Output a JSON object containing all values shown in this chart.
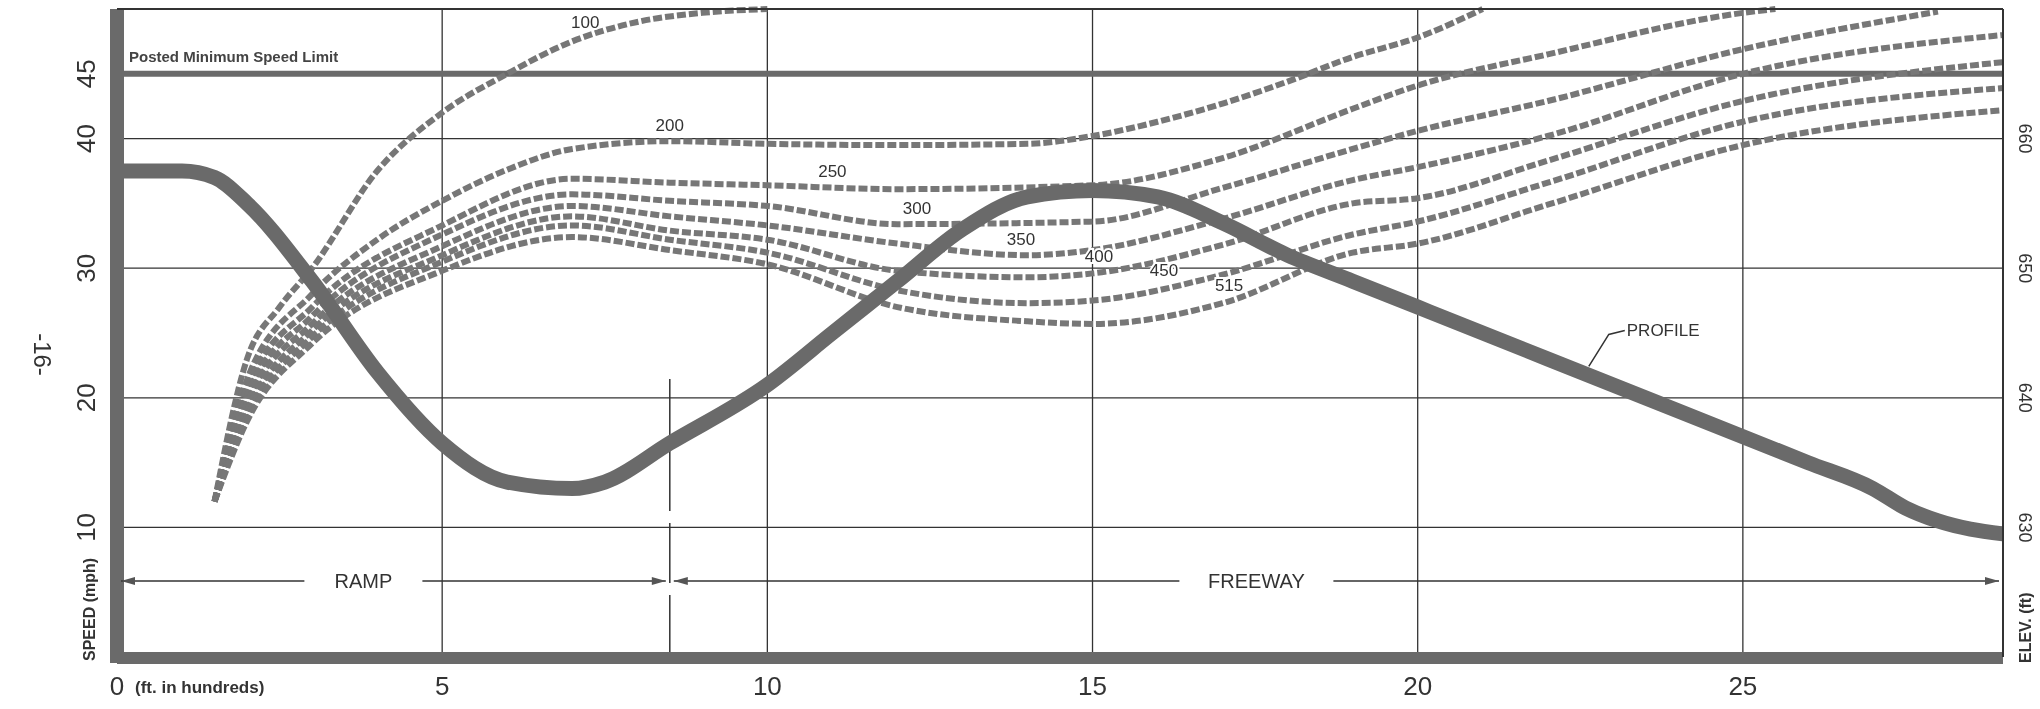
{
  "chart_data": {
    "type": "line",
    "ylabel": "SPEED (mph)",
    "y2label": "ELEV. (ft)",
    "xlabel": "(ft. in hundreds)",
    "xlim": [
      0,
      29
    ],
    "xticks": [
      0,
      5,
      10,
      15,
      20,
      25
    ],
    "ylim": [
      0,
      50
    ],
    "yticks": [
      10,
      20,
      30,
      40,
      45
    ],
    "y2lim": [
      620,
      670
    ],
    "y2ticks": [
      630,
      640,
      650,
      660
    ],
    "grid": true,
    "marker": "none",
    "line_style": "dashed",
    "tick_labels": "xy",
    "ref_lines": [
      {
        "axis": "y",
        "value": 45,
        "label": "Posted Minimum Speed Limit",
        "color": "#6a6a6a"
      },
      {
        "axis": "x",
        "value": 8.5,
        "color": "#333333"
      }
    ],
    "annotations": [
      "-16-",
      "RAMP",
      "FREEWAY"
    ],
    "series": [
      {
        "name": "100",
        "color": "#777777",
        "x": [
          1.5,
          2,
          2.5,
          3,
          4,
          5,
          6,
          7,
          8,
          9,
          10
        ],
        "values": [
          12,
          23,
          27,
          30,
          37.5,
          42,
          45,
          47.5,
          49,
          49.7,
          50
        ]
      },
      {
        "name": "200",
        "color": "#777777",
        "x": [
          1.5,
          2,
          3,
          4,
          5,
          6,
          7,
          8.5,
          10,
          12,
          14,
          15,
          16,
          17,
          18,
          19,
          20,
          21
        ],
        "values": [
          12,
          21.4,
          28,
          32.2,
          35.2,
          37.6,
          39.2,
          39.8,
          39.6,
          39.5,
          39.6,
          40.2,
          41.3,
          42.7,
          44.4,
          46.3,
          47.8,
          50
        ]
      },
      {
        "name": "250",
        "color": "#777777",
        "x": [
          1.5,
          2,
          3,
          5,
          7,
          8.5,
          10,
          12,
          15,
          17,
          19,
          20,
          22,
          25,
          25.5
        ],
        "values": [
          12,
          20.8,
          27,
          33.3,
          36.9,
          36.6,
          36.4,
          36.1,
          36.4,
          38.5,
          42.3,
          44.1,
          46.5,
          49.7,
          50
        ]
      },
      {
        "name": "300",
        "color": "#777777",
        "x": [
          1.5,
          2,
          3,
          5,
          7,
          8.5,
          10,
          12,
          15,
          17,
          19,
          20,
          22,
          25,
          28
        ],
        "values": [
          12,
          20.2,
          26.3,
          32.6,
          35.7,
          35.2,
          34.8,
          33.4,
          33.6,
          36.2,
          39.2,
          40.6,
          42.9,
          46.9,
          49.8
        ]
      },
      {
        "name": "350",
        "color": "#777777",
        "x": [
          1.5,
          2,
          3,
          5,
          7,
          8.5,
          10,
          12,
          14,
          15,
          17,
          19,
          20,
          22,
          25,
          29
        ],
        "values": [
          12,
          19.6,
          25.7,
          31.7,
          34.8,
          34,
          33.3,
          31.9,
          31,
          31.4,
          33.8,
          36.8,
          37.8,
          40.2,
          45,
          48
        ]
      },
      {
        "name": "400",
        "color": "#777777",
        "x": [
          1.5,
          2,
          3,
          5,
          7,
          8.5,
          10,
          12,
          14,
          15,
          17,
          19,
          20,
          22,
          25,
          29
        ],
        "values": [
          12,
          19,
          25.2,
          31,
          34,
          32.9,
          32.2,
          29.8,
          29.3,
          29.6,
          31.8,
          35,
          35.4,
          38.3,
          42.9,
          45.9
        ]
      },
      {
        "name": "450",
        "color": "#777777",
        "x": [
          1.5,
          2,
          3,
          5,
          7,
          8.5,
          10,
          12,
          14,
          15,
          17,
          19,
          20,
          22,
          25,
          29
        ],
        "values": [
          12,
          18.6,
          24.7,
          30.5,
          33.3,
          32.2,
          31.2,
          28.3,
          27.3,
          27.5,
          29.5,
          32.6,
          33.6,
          36.6,
          41.3,
          43.9
        ]
      },
      {
        "name": "515",
        "color": "#777777",
        "x": [
          1.5,
          2,
          3,
          5,
          7,
          8.5,
          10,
          12,
          14,
          15,
          17,
          19,
          20,
          22,
          25,
          29
        ],
        "values": [
          12,
          18.2,
          24.2,
          29.8,
          32.4,
          31.4,
          30.3,
          27,
          25.9,
          25.7,
          27.3,
          31.2,
          31.9,
          34.9,
          39.5,
          42.2
        ]
      },
      {
        "name": "PROFILE",
        "color": "#6a6a6a",
        "axis": "y2",
        "line_style": "solid",
        "x": [
          0,
          1,
          1.5,
          2,
          3,
          4,
          5,
          6,
          7,
          7.5,
          8.5,
          10,
          11,
          12,
          13,
          14,
          15,
          16,
          17,
          18,
          19,
          20,
          22,
          24,
          26,
          27,
          27.5,
          28,
          29
        ],
        "values": [
          657.5,
          657.5,
          657,
          655,
          649,
          642,
          636.5,
          633.5,
          633,
          633.5,
          636.5,
          641,
          645,
          649,
          653,
          655.5,
          656,
          655.5,
          653.5,
          651,
          649,
          647,
          643,
          639,
          635,
          633,
          631.5,
          630.5,
          629.5
        ]
      }
    ]
  }
}
